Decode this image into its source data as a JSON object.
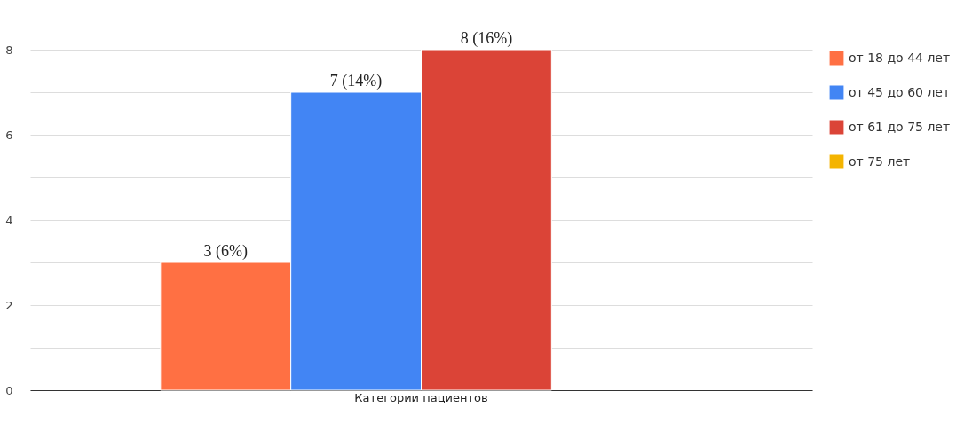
{
  "chart_data": {
    "type": "bar",
    "categories": [
      "Категории пациентов"
    ],
    "series": [
      {
        "name": "от 18 до 44 лет",
        "color": "#ff7043",
        "values": [
          3
        ],
        "value_labels": [
          "3 (6%)"
        ]
      },
      {
        "name": "от 45 до 60 лет",
        "color": "#4285f4",
        "values": [
          7
        ],
        "value_labels": [
          "7 (14%)"
        ]
      },
      {
        "name": "от 61 до 75 лет",
        "color": "#db4437",
        "values": [
          8
        ],
        "value_labels": [
          "8 (16%)"
        ]
      },
      {
        "name": "от 75 лет",
        "color": "#f4b400",
        "values": [
          null
        ],
        "value_labels": [
          null
        ]
      }
    ],
    "ylim": [
      0,
      8
    ],
    "yticks": [
      0,
      {
        "value": 1,
        "label": null
      },
      2,
      {
        "value": 3,
        "label": null
      },
      4,
      {
        "value": 5,
        "label": null
      },
      6,
      {
        "value": 7,
        "label": null
      },
      8
    ],
    "grid": "y",
    "legend": "top right"
  }
}
